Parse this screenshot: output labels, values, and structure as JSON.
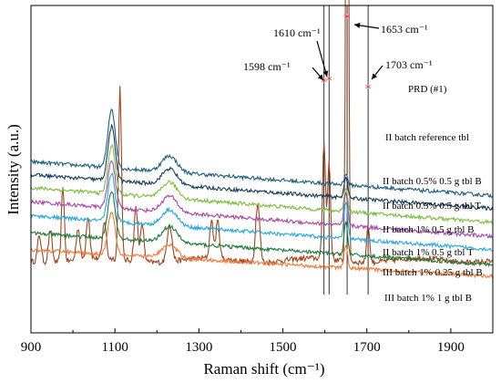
{
  "chart_data": {
    "type": "line",
    "xlabel": "Raman shift (cm⁻¹)",
    "ylabel": "Intensity (a.u.)",
    "xlim": [
      900,
      2000
    ],
    "xticks": [
      900,
      1100,
      1300,
      1500,
      1700,
      1900
    ],
    "y_tick_labels": "none",
    "legend": "inline labels at right of each trace",
    "grid": false,
    "vlines": [
      1598,
      1610,
      1653,
      1703
    ],
    "series": [
      {
        "name": "PRD (#1)",
        "color": "#a0451d",
        "base": 0.7,
        "tilt": 0.0,
        "noise": 0.15,
        "peaks": [
          [
            920,
            0.25,
            6
          ],
          [
            946,
            0.3,
            6
          ],
          [
            976,
            0.7,
            5
          ],
          [
            1012,
            0.3,
            6
          ],
          [
            1036,
            0.4,
            6
          ],
          [
            1075,
            0.35,
            6
          ],
          [
            1112,
            1.6,
            5
          ],
          [
            1150,
            0.5,
            6
          ],
          [
            1165,
            0.35,
            6
          ],
          [
            1230,
            0.35,
            8
          ],
          [
            1330,
            0.35,
            6
          ],
          [
            1345,
            0.35,
            6
          ],
          [
            1440,
            0.55,
            7
          ],
          [
            1598,
            1.1,
            5
          ],
          [
            1610,
            0.9,
            5
          ],
          [
            1653,
            7.5,
            4
          ],
          [
            1703,
            0.35,
            5
          ]
        ]
      },
      {
        "name": "II batch reference tbl",
        "color": "#1f5f7d",
        "base": 1.3,
        "tilt": 0.7,
        "noise": 0.1,
        "peaks": [
          [
            1092,
            0.55,
            12
          ],
          [
            1230,
            0.15,
            25
          ],
          [
            1650,
            0.1,
            6
          ]
        ]
      },
      {
        "name": "II batch 0.5% 0.5 g tbl B",
        "color": "#183e5c",
        "base": 1.18,
        "tilt": 0.7,
        "noise": 0.1,
        "peaks": [
          [
            1092,
            0.5,
            12
          ],
          [
            1230,
            0.15,
            25
          ],
          [
            1650,
            0.2,
            6
          ]
        ]
      },
      {
        "name": "II batch 0.5% 0.5 g tbl T",
        "color": "#7bbe3c",
        "base": 1.05,
        "tilt": 0.72,
        "noise": 0.1,
        "peaks": [
          [
            1092,
            0.45,
            12
          ],
          [
            1230,
            0.15,
            25
          ],
          [
            1650,
            0.22,
            6
          ]
        ]
      },
      {
        "name": "II batch 1% 0.5 g tbl B",
        "color": "#a84aa8",
        "base": 0.92,
        "tilt": 0.72,
        "noise": 0.1,
        "peaks": [
          [
            1092,
            0.45,
            12
          ],
          [
            1230,
            0.15,
            25
          ],
          [
            1650,
            0.3,
            6
          ]
        ]
      },
      {
        "name": "II batch 1% 0.5 g tbl T",
        "color": "#29a7dc",
        "base": 0.8,
        "tilt": 0.7,
        "noise": 0.1,
        "peaks": [
          [
            1092,
            0.45,
            12
          ],
          [
            1230,
            0.15,
            25
          ],
          [
            1650,
            0.35,
            6
          ]
        ]
      },
      {
        "name": "III batch 1% 0.25 g tbl B",
        "color": "#1c7a3a",
        "base": 0.66,
        "tilt": 0.65,
        "noise": 0.1,
        "peaks": [
          [
            1092,
            0.45,
            12
          ],
          [
            1230,
            0.15,
            25
          ],
          [
            1650,
            0.3,
            6
          ]
        ]
      },
      {
        "name": "III batch 1% 1 g tbl B",
        "color": "#f07a3a",
        "base": 0.55,
        "tilt": 0.55,
        "noise": 0.1,
        "peaks": [
          [
            1092,
            0.4,
            12
          ],
          [
            1230,
            0.12,
            25
          ],
          [
            1650,
            0.2,
            6
          ]
        ]
      }
    ],
    "annotations": [
      {
        "text": "1598 cm⁻¹",
        "x": 1598
      },
      {
        "text": "1610 cm⁻¹",
        "x": 1610
      },
      {
        "text": "1653 cm⁻¹",
        "x": 1653
      },
      {
        "text": "1703 cm⁻¹",
        "x": 1703
      }
    ],
    "peak_markers": [
      1598,
      1610,
      1653,
      1703
    ],
    "colors": {
      "axis": "#000000",
      "marker": "#e8322d",
      "vline": "#000000"
    }
  }
}
